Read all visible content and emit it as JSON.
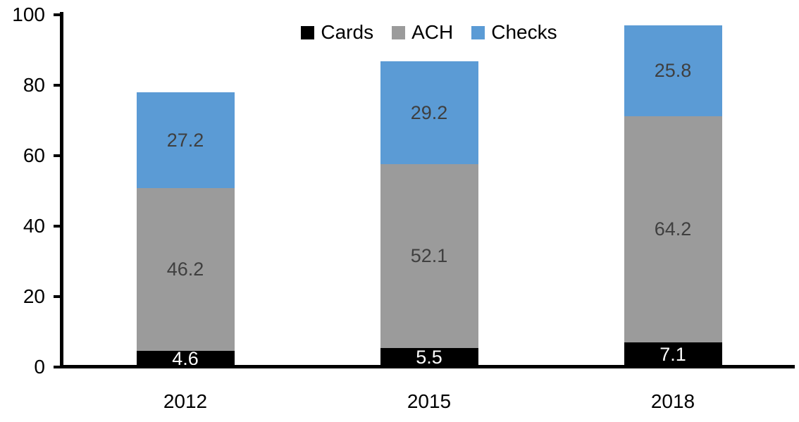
{
  "chart_data": {
    "type": "bar",
    "stacked": true,
    "title": "",
    "categories": [
      "2012",
      "2015",
      "2018"
    ],
    "series": [
      {
        "name": "Cards",
        "color": "#000000",
        "label_color": "#ffffff",
        "values": [
          4.6,
          5.5,
          7.1
        ]
      },
      {
        "name": "ACH",
        "color": "#9b9b9b",
        "label_color": "#3f3f3f",
        "values": [
          46.2,
          52.1,
          64.2
        ]
      },
      {
        "name": "Checks",
        "color": "#5b9bd5",
        "label_color": "#3f3f3f",
        "values": [
          27.2,
          29.2,
          25.8
        ]
      }
    ],
    "ylim": [
      0,
      100
    ],
    "yticks": [
      0,
      20,
      40,
      60,
      80,
      100
    ],
    "xlabel": "",
    "ylabel": "",
    "legend_position": "top-center",
    "grid": false,
    "axis_color": "#000000"
  }
}
